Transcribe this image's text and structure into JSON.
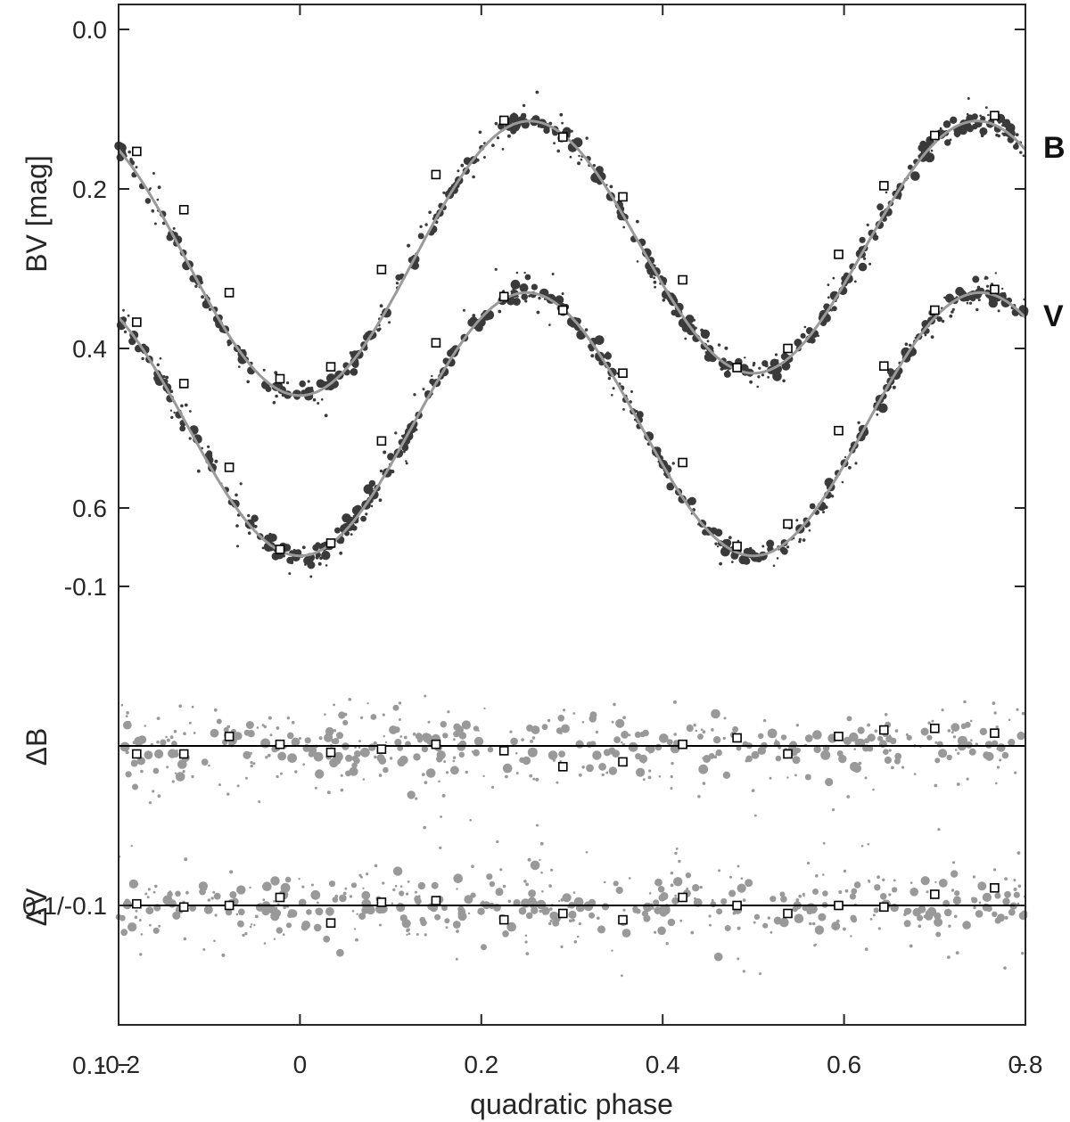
{
  "chart_data": {
    "type": "scatter",
    "title": "",
    "xlabel": "quadratic phase",
    "xlim": [
      -0.2,
      0.8
    ],
    "x_ticks": [
      -0.2,
      0,
      0.2,
      0.4,
      0.6,
      0.8
    ],
    "x_tick_labels": [
      "-0.2",
      "0",
      "0.2",
      "0.4",
      "0.6",
      "0.8"
    ],
    "y_labels": {
      "top": "BV [mag]",
      "delta_b": "ΔB",
      "delta_v": "ΔV"
    },
    "y_tick_labels": [
      "0.0",
      "0.2",
      "0.4",
      "0.6",
      "-0.1",
      "0.1/-0.1",
      "0.1"
    ],
    "y_axis_reversed": true,
    "grid": false,
    "legend": "none",
    "band_labels": [
      "B",
      "V"
    ],
    "panels": {
      "light_curves": {
        "ylim": [
          -0.03,
          0.78
        ],
        "curves": [
          {
            "label": "B",
            "level": 0.28,
            "amp_primary": 0.165,
            "amp_secondary": 0.155,
            "offset_second_harmonic": 0.014,
            "phase_max_brightness": [
              0.23,
              0.75
            ]
          },
          {
            "label": "V",
            "level": 0.495,
            "amp_primary": 0.165,
            "amp_secondary": 0.155,
            "offset_second_harmonic": 0.0,
            "phase_max_brightness": [
              0.23,
              0.75
            ]
          }
        ],
        "binned_points": {
          "B": {
            "x": [
              -0.18,
              -0.128,
              -0.078,
              -0.022,
              0.034,
              0.09,
              0.15,
              0.225,
              0.29,
              0.356,
              0.422,
              0.482,
              0.538,
              0.594,
              0.644,
              0.7,
              0.766
            ],
            "y": [
              0.153,
              0.226,
              0.33,
              0.438,
              0.423,
              0.301,
              0.182,
              0.114,
              0.135,
              0.21,
              0.314,
              0.424,
              0.4,
              0.282,
              0.196,
              0.133,
              0.108
            ]
          },
          "V": {
            "x": [
              -0.18,
              -0.128,
              -0.078,
              -0.022,
              0.034,
              0.09,
              0.15,
              0.225,
              0.29,
              0.356,
              0.422,
              0.482,
              0.538,
              0.594,
              0.644,
              0.7,
              0.766
            ],
            "y": [
              0.367,
              0.444,
              0.549,
              0.652,
              0.644,
              0.516,
              0.393,
              0.335,
              0.352,
              0.431,
              0.543,
              0.648,
              0.62,
              0.503,
              0.422,
              0.352,
              0.326
            ]
          }
        }
      },
      "delta_b": {
        "ylim": [
          -0.1,
          0.1
        ],
        "binned_points": {
          "x": [
            -0.18,
            -0.128,
            -0.078,
            -0.022,
            0.034,
            0.09,
            0.15,
            0.225,
            0.29,
            0.356,
            0.422,
            0.482,
            0.538,
            0.594,
            0.644,
            0.7,
            0.766
          ],
          "y": [
            0.005,
            0.005,
            -0.006,
            -0.001,
            0.004,
            0.002,
            -0.001,
            0.003,
            0.013,
            0.01,
            -0.001,
            -0.005,
            0.005,
            -0.006,
            -0.01,
            -0.011,
            -0.008
          ]
        }
      },
      "delta_v": {
        "ylim": [
          -0.1,
          0.1
        ],
        "binned_points": {
          "x": [
            -0.18,
            -0.128,
            -0.078,
            -0.022,
            0.034,
            0.09,
            0.15,
            0.225,
            0.29,
            0.356,
            0.422,
            0.482,
            0.538,
            0.594,
            0.644,
            0.7,
            0.766
          ],
          "y": [
            -0.001,
            0.001,
            0.0,
            -0.005,
            0.011,
            -0.002,
            -0.003,
            0.009,
            0.005,
            0.009,
            -0.005,
            0.0,
            0.005,
            0.0,
            0.001,
            -0.007,
            -0.011
          ]
        }
      }
    },
    "colors": {
      "observations_light": "#3a3a3a",
      "observations_residuals": "#999999",
      "model_curve": "#9a9a9a",
      "zero_line": "#000000",
      "binned_marker_edge": "#000000",
      "axes": "#262626"
    }
  }
}
